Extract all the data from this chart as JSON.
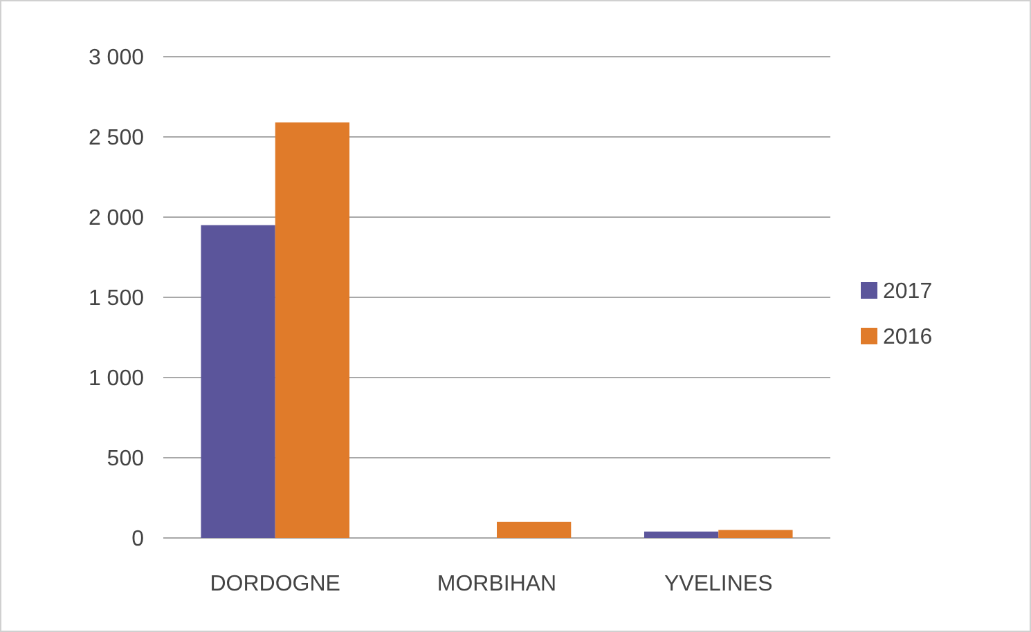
{
  "chart_data": {
    "type": "bar",
    "categories": [
      "DORDOGNE",
      "MORBIHAN",
      "YVELINES"
    ],
    "series": [
      {
        "name": "2017",
        "color": "#5b559b",
        "values": [
          1950,
          0,
          40
        ]
      },
      {
        "name": "2016",
        "color": "#e07b2a",
        "values": [
          2590,
          100,
          50
        ]
      }
    ],
    "ylim": [
      0,
      3000
    ],
    "yticks": [
      {
        "value": 0,
        "label": "0"
      },
      {
        "value": 500,
        "label": "500"
      },
      {
        "value": 1000,
        "label": "1 000"
      },
      {
        "value": 1500,
        "label": "1 500"
      },
      {
        "value": 2000,
        "label": "2 000"
      },
      {
        "value": 2500,
        "label": "2 500"
      },
      {
        "value": 3000,
        "label": "3 000"
      }
    ],
    "grid": "y",
    "legend": "right"
  }
}
